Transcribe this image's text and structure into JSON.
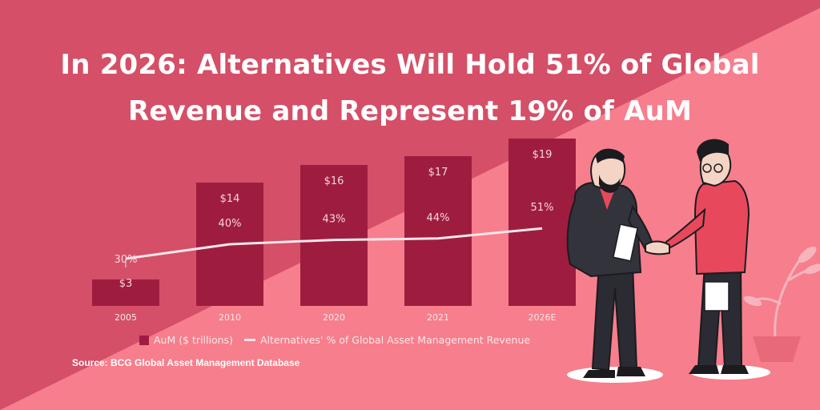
{
  "title_line1": "In 2026: Alternatives Will Hold 51% of Global",
  "title_line2": "Revenue and Represent 19% of AuM",
  "source": "Source: BCG Global Asset Management Database",
  "colors": {
    "background_dark": "#d44f67",
    "background_light": "#f77e8c",
    "bar": "#9e1d3f",
    "line": "#f7e6ea"
  },
  "chart_data": {
    "type": "bar",
    "categories": [
      "2005",
      "2010",
      "2020",
      "2021",
      "2026E"
    ],
    "series": [
      {
        "name": "AuM ($ trillions)",
        "type": "bar",
        "values": [
          3,
          14,
          16,
          17,
          19
        ],
        "labels": [
          "$3",
          "$14",
          "$16",
          "$17",
          "$19"
        ]
      },
      {
        "name": "Alternatives' % of Global Asset Management Revenue",
        "type": "line",
        "values": [
          30,
          40,
          43,
          44,
          51
        ],
        "labels": [
          "30%",
          "40%",
          "43%",
          "44%",
          "51%"
        ]
      }
    ],
    "title": "In 2026: Alternatives Will Hold 51% of Global Revenue and Represent 19% of AuM",
    "legend_position": "bottom-left",
    "grid": false
  },
  "illustration": {
    "description_icon": "handshake-illustration"
  }
}
